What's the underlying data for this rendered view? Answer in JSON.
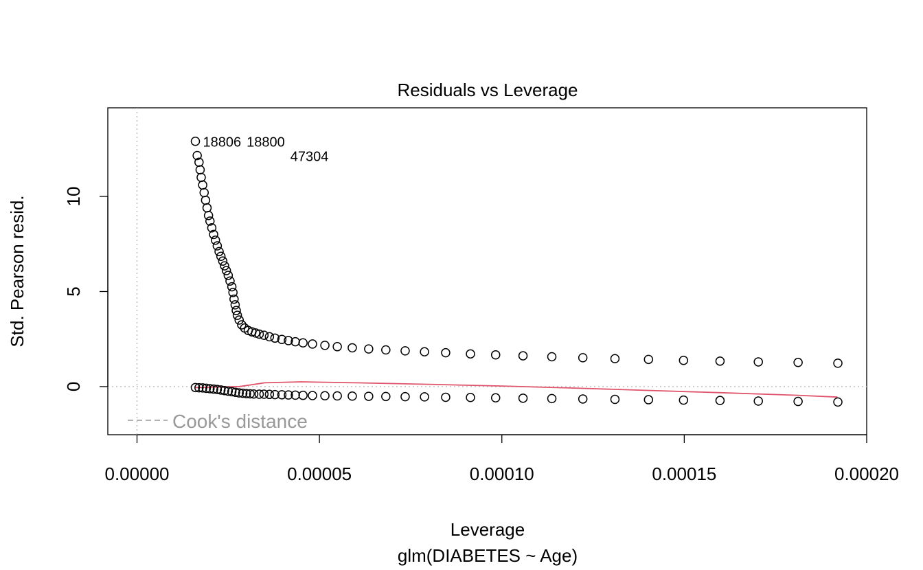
{
  "chart_data": {
    "type": "scatter",
    "title": "Residuals vs Leverage",
    "xlabel": "Leverage",
    "sublabel": "glm(DIABETES ~ Age)",
    "ylabel": "Std. Pearson resid.",
    "xlim": [
      -8e-06,
      0.0002
    ],
    "ylim": [
      -2.53,
      14.66
    ],
    "x_ticks": [
      {
        "value": 0.0,
        "label": "0.00000"
      },
      {
        "value": 5e-05,
        "label": "0.00005"
      },
      {
        "value": 0.0001,
        "label": "0.00010"
      },
      {
        "value": 0.00015,
        "label": "0.00015"
      },
      {
        "value": 0.0002,
        "label": "0.00020"
      }
    ],
    "y_ticks": [
      {
        "value": 0,
        "label": "0"
      },
      {
        "value": 5,
        "label": "5"
      },
      {
        "value": 10,
        "label": "10"
      }
    ],
    "reference_lines": {
      "x": 0,
      "y": 0,
      "style": "dotted",
      "color": "#BEBEBE"
    },
    "legend": {
      "label": "Cook's distance",
      "placement": "bottom-left",
      "style": "dashed",
      "color": "#999999"
    },
    "point_labels": [
      {
        "x": 1.6e-05,
        "y": 12.9,
        "label": "18806"
      },
      {
        "x": 1.6e-05,
        "y": 12.9,
        "label": "18800"
      },
      {
        "x": 1.65e-05,
        "y": 12.15,
        "label": "47304"
      }
    ],
    "points": [
      [
        1.6e-05,
        12.9
      ],
      [
        1.65e-05,
        12.15
      ],
      [
        1.7e-05,
        11.8
      ],
      [
        1.73e-05,
        11.4
      ],
      [
        1.76e-05,
        11.0
      ],
      [
        1.8e-05,
        10.6
      ],
      [
        1.84e-05,
        10.2
      ],
      [
        1.88e-05,
        9.8
      ],
      [
        1.92e-05,
        9.4
      ],
      [
        1.96e-05,
        9.0
      ],
      [
        2e-05,
        8.7
      ],
      [
        2.05e-05,
        8.35
      ],
      [
        2.1e-05,
        8.0
      ],
      [
        2.15e-05,
        7.7
      ],
      [
        2.2e-05,
        7.4
      ],
      [
        2.25e-05,
        7.1
      ],
      [
        2.3e-05,
        6.85
      ],
      [
        2.35e-05,
        6.6
      ],
      [
        2.4e-05,
        6.35
      ],
      [
        2.45e-05,
        6.1
      ],
      [
        2.5e-05,
        5.85
      ],
      [
        2.55e-05,
        5.55
      ],
      [
        2.6e-05,
        5.25
      ],
      [
        2.63e-05,
        4.95
      ],
      [
        2.66e-05,
        4.6
      ],
      [
        2.69e-05,
        4.3
      ],
      [
        2.72e-05,
        4.0
      ],
      [
        2.75e-05,
        3.75
      ],
      [
        2.8e-05,
        3.5
      ],
      [
        2.87e-05,
        3.25
      ],
      [
        2.95e-05,
        3.08
      ],
      [
        3.05e-05,
        2.95
      ],
      [
        3.15e-05,
        2.88
      ],
      [
        3.25e-05,
        2.82
      ],
      [
        3.35e-05,
        2.76
      ],
      [
        3.48e-05,
        2.7
      ],
      [
        3.63e-05,
        2.62
      ],
      [
        3.78e-05,
        2.55
      ],
      [
        3.97e-05,
        2.48
      ],
      [
        4.15e-05,
        2.42
      ],
      [
        4.34e-05,
        2.36
      ],
      [
        4.55e-05,
        2.3
      ],
      [
        4.81e-05,
        2.24
      ],
      [
        5.15e-05,
        2.17
      ],
      [
        5.49e-05,
        2.1
      ],
      [
        5.9e-05,
        2.04
      ],
      [
        6.35e-05,
        1.98
      ],
      [
        6.82e-05,
        1.93
      ],
      [
        7.35e-05,
        1.88
      ],
      [
        7.88e-05,
        1.83
      ],
      [
        8.46e-05,
        1.78
      ],
      [
        9.14e-05,
        1.72
      ],
      [
        9.83e-05,
        1.67
      ],
      [
        0.0001058,
        1.62
      ],
      [
        0.0001137,
        1.57
      ],
      [
        0.0001222,
        1.52
      ],
      [
        0.000131,
        1.47
      ],
      [
        0.0001402,
        1.43
      ],
      [
        0.0001498,
        1.38
      ],
      [
        0.0001598,
        1.34
      ],
      [
        0.0001703,
        1.3
      ],
      [
        0.0001812,
        1.27
      ],
      [
        0.0001921,
        1.23
      ],
      [
        1.6e-05,
        -0.05
      ],
      [
        1.7e-05,
        -0.06
      ],
      [
        1.8e-05,
        -0.07
      ],
      [
        1.9e-05,
        -0.09
      ],
      [
        2e-05,
        -0.11
      ],
      [
        2.1e-05,
        -0.13
      ],
      [
        2.2e-05,
        -0.15
      ],
      [
        2.3e-05,
        -0.18
      ],
      [
        2.4e-05,
        -0.21
      ],
      [
        2.5e-05,
        -0.24
      ],
      [
        2.6e-05,
        -0.27
      ],
      [
        2.7e-05,
        -0.3
      ],
      [
        2.8e-05,
        -0.33
      ],
      [
        2.9e-05,
        -0.35
      ],
      [
        3e-05,
        -0.37
      ],
      [
        3.1e-05,
        -0.38
      ],
      [
        3.2e-05,
        -0.39
      ],
      [
        3.35e-05,
        -0.4
      ],
      [
        3.48e-05,
        -0.4
      ],
      [
        3.63e-05,
        -0.41
      ],
      [
        3.78e-05,
        -0.42
      ],
      [
        3.97e-05,
        -0.43
      ],
      [
        4.15e-05,
        -0.44
      ],
      [
        4.34e-05,
        -0.45
      ],
      [
        4.55e-05,
        -0.46
      ],
      [
        4.81e-05,
        -0.47
      ],
      [
        5.15e-05,
        -0.48
      ],
      [
        5.49e-05,
        -0.49
      ],
      [
        5.9e-05,
        -0.5
      ],
      [
        6.35e-05,
        -0.51
      ],
      [
        6.82e-05,
        -0.52
      ],
      [
        7.35e-05,
        -0.53
      ],
      [
        7.88e-05,
        -0.54
      ],
      [
        8.46e-05,
        -0.56
      ],
      [
        9.14e-05,
        -0.57
      ],
      [
        9.83e-05,
        -0.59
      ],
      [
        0.0001058,
        -0.61
      ],
      [
        0.0001137,
        -0.63
      ],
      [
        0.0001222,
        -0.65
      ],
      [
        0.000131,
        -0.67
      ],
      [
        0.0001402,
        -0.69
      ],
      [
        0.0001498,
        -0.71
      ],
      [
        0.0001598,
        -0.73
      ],
      [
        0.0001703,
        -0.76
      ],
      [
        0.0001812,
        -0.78
      ],
      [
        0.0001921,
        -0.81
      ]
    ],
    "smooth": {
      "color": "#DF536B",
      "points": [
        [
          1.6e-05,
          -0.05
        ],
        [
          2.8e-05,
          0.0
        ],
        [
          3.5e-05,
          0.2
        ],
        [
          4.5e-05,
          0.25
        ],
        [
          6e-05,
          0.2
        ],
        [
          8e-05,
          0.12
        ],
        [
          0.0001,
          0.03
        ],
        [
          0.00012,
          -0.08
        ],
        [
          0.00014,
          -0.2
        ],
        [
          0.00016,
          -0.32
        ],
        [
          0.00018,
          -0.45
        ],
        [
          0.000192,
          -0.55
        ]
      ]
    },
    "grid": false
  }
}
